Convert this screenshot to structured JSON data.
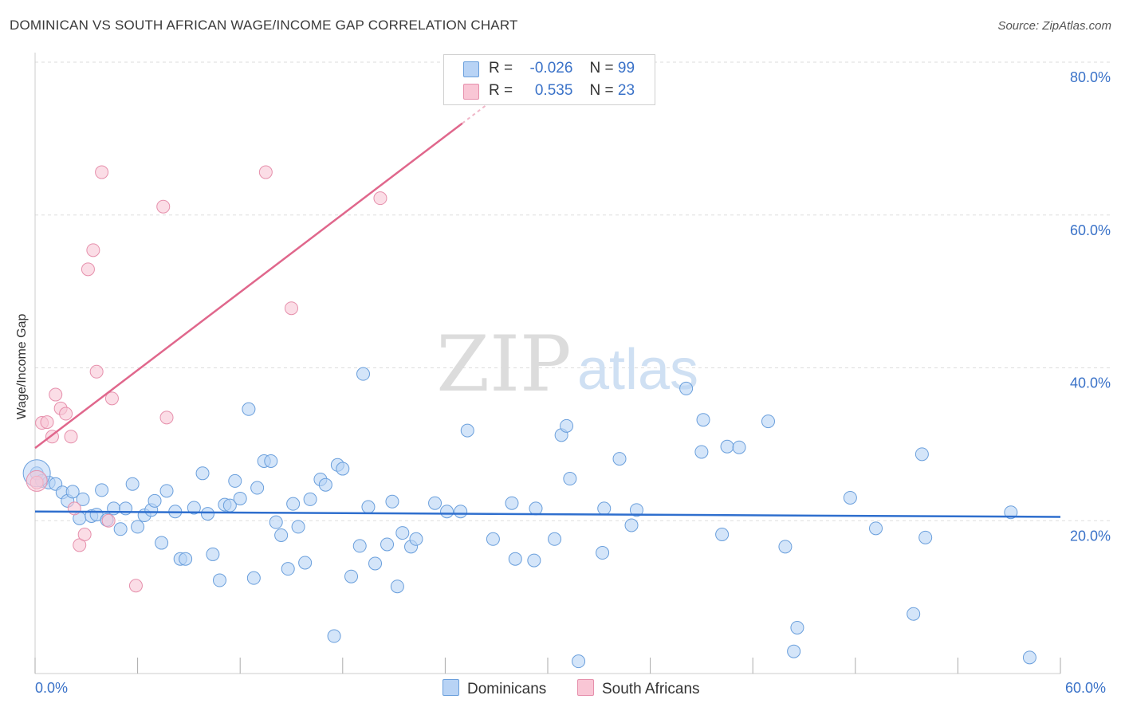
{
  "title": "DOMINICAN VS SOUTH AFRICAN WAGE/INCOME GAP CORRELATION CHART",
  "source": "Source: ZipAtlas.com",
  "watermark": {
    "zip": "ZIP",
    "atlas": "atlas"
  },
  "legend": {
    "rows": [
      {
        "r_label": "R =",
        "r_value": "-0.026",
        "n_label": "N =",
        "n_value": "99"
      },
      {
        "r_label": "R =",
        "r_value": "0.535",
        "n_label": "N =",
        "n_value": "23"
      }
    ]
  },
  "colors": {
    "dominicans_fill": "#b8d3f5",
    "dominicans_stroke": "#6a9fdc",
    "dominicans_line": "#2f6fce",
    "south_africans_fill": "#f9c6d5",
    "south_africans_stroke": "#e690ac",
    "south_africans_line": "#e0678c",
    "axis_text": "#3a72c8",
    "grid": "#dddddd"
  },
  "chart_data": {
    "type": "scatter",
    "title": "DOMINICAN VS SOUTH AFRICAN WAGE/INCOME GAP CORRELATION CHART",
    "xlabel": "",
    "ylabel": "Wage/Income Gap",
    "xlim": [
      0,
      60
    ],
    "ylim": [
      0,
      80
    ],
    "x_tick_labels": [
      "0.0%",
      "60.0%"
    ],
    "y_tick_labels": [
      "20.0%",
      "40.0%",
      "60.0%",
      "80.0%"
    ],
    "y_ticks": [
      20,
      40,
      60,
      80
    ],
    "grid": true,
    "legend_position": "bottom-center",
    "series": [
      {
        "name": "Dominicans",
        "r": -0.026,
        "n": 99,
        "trend": {
          "x": [
            0,
            60
          ],
          "y": [
            21.2,
            20.5
          ]
        },
        "points": [
          [
            0.1,
            26.2
          ],
          [
            0.4,
            25.2
          ],
          [
            0.8,
            25.0
          ],
          [
            1.2,
            24.8
          ],
          [
            1.6,
            23.7
          ],
          [
            1.9,
            22.6
          ],
          [
            2.2,
            23.8
          ],
          [
            2.6,
            20.3
          ],
          [
            2.8,
            22.8
          ],
          [
            3.3,
            20.6
          ],
          [
            3.6,
            20.8
          ],
          [
            3.9,
            24.0
          ],
          [
            4.2,
            20.1
          ],
          [
            4.6,
            21.6
          ],
          [
            5.0,
            18.9
          ],
          [
            5.3,
            21.6
          ],
          [
            5.7,
            24.8
          ],
          [
            6.0,
            19.2
          ],
          [
            6.4,
            20.7
          ],
          [
            6.8,
            21.4
          ],
          [
            7.0,
            22.6
          ],
          [
            7.4,
            17.1
          ],
          [
            7.7,
            23.9
          ],
          [
            8.2,
            21.2
          ],
          [
            8.5,
            15.0
          ],
          [
            8.8,
            15.0
          ],
          [
            9.3,
            21.7
          ],
          [
            9.8,
            26.2
          ],
          [
            10.1,
            20.9
          ],
          [
            10.4,
            15.6
          ],
          [
            10.8,
            12.2
          ],
          [
            11.1,
            22.1
          ],
          [
            11.4,
            22.0
          ],
          [
            11.7,
            25.2
          ],
          [
            12.0,
            22.9
          ],
          [
            12.5,
            34.6
          ],
          [
            12.8,
            12.5
          ],
          [
            13.0,
            24.3
          ],
          [
            13.4,
            27.8
          ],
          [
            13.8,
            27.8
          ],
          [
            14.1,
            19.8
          ],
          [
            14.4,
            18.1
          ],
          [
            14.8,
            13.7
          ],
          [
            15.1,
            22.2
          ],
          [
            15.4,
            19.2
          ],
          [
            15.8,
            14.5
          ],
          [
            16.1,
            22.8
          ],
          [
            16.7,
            25.4
          ],
          [
            17.0,
            24.7
          ],
          [
            17.5,
            4.9
          ],
          [
            17.7,
            27.3
          ],
          [
            18.0,
            26.8
          ],
          [
            18.5,
            12.7
          ],
          [
            19.0,
            16.7
          ],
          [
            19.2,
            39.2
          ],
          [
            19.5,
            21.8
          ],
          [
            19.9,
            14.4
          ],
          [
            20.6,
            16.9
          ],
          [
            20.9,
            22.5
          ],
          [
            21.2,
            11.4
          ],
          [
            21.5,
            18.4
          ],
          [
            22.0,
            16.6
          ],
          [
            22.3,
            17.6
          ],
          [
            23.4,
            22.3
          ],
          [
            24.1,
            21.2
          ],
          [
            24.9,
            21.2
          ],
          [
            25.3,
            31.8
          ],
          [
            26.8,
            17.6
          ],
          [
            27.9,
            22.3
          ],
          [
            28.1,
            15.0
          ],
          [
            29.2,
            14.8
          ],
          [
            29.3,
            21.6
          ],
          [
            30.4,
            17.6
          ],
          [
            30.8,
            31.2
          ],
          [
            31.1,
            32.4
          ],
          [
            31.3,
            25.5
          ],
          [
            31.8,
            1.6
          ],
          [
            33.2,
            15.8
          ],
          [
            33.3,
            21.6
          ],
          [
            34.2,
            28.1
          ],
          [
            34.9,
            19.4
          ],
          [
            35.2,
            21.4
          ],
          [
            38.1,
            37.3
          ],
          [
            39.0,
            29.0
          ],
          [
            39.1,
            33.2
          ],
          [
            40.2,
            18.2
          ],
          [
            40.5,
            29.7
          ],
          [
            41.2,
            29.6
          ],
          [
            42.9,
            33.0
          ],
          [
            43.9,
            16.6
          ],
          [
            44.6,
            6.0
          ],
          [
            44.4,
            2.9
          ],
          [
            47.7,
            23.0
          ],
          [
            49.2,
            19.0
          ],
          [
            51.4,
            7.8
          ],
          [
            51.9,
            28.7
          ],
          [
            52.1,
            17.8
          ],
          [
            57.1,
            21.1
          ],
          [
            58.2,
            2.1
          ]
        ]
      },
      {
        "name": "South Africans",
        "r": 0.535,
        "n": 23,
        "trend": {
          "x": [
            0,
            25.0
          ],
          "y": [
            29.5,
            72.0
          ]
        },
        "trend_dashed": {
          "x": [
            25.0,
            28.0
          ],
          "y": [
            72.0,
            77.1
          ]
        },
        "points": [
          [
            0.1,
            25.0
          ],
          [
            0.4,
            32.8
          ],
          [
            0.7,
            32.9
          ],
          [
            1.0,
            31.0
          ],
          [
            1.2,
            36.5
          ],
          [
            1.5,
            34.7
          ],
          [
            1.8,
            34.0
          ],
          [
            2.1,
            31.0
          ],
          [
            2.3,
            21.6
          ],
          [
            2.6,
            16.8
          ],
          [
            2.9,
            18.2
          ],
          [
            3.1,
            52.9
          ],
          [
            3.4,
            55.4
          ],
          [
            3.6,
            39.5
          ],
          [
            3.9,
            65.6
          ],
          [
            4.3,
            20.0
          ],
          [
            4.5,
            36.0
          ],
          [
            5.9,
            11.5
          ],
          [
            7.5,
            61.1
          ],
          [
            7.7,
            33.5
          ],
          [
            13.5,
            65.6
          ],
          [
            15.0,
            47.8
          ],
          [
            20.2,
            62.2
          ]
        ]
      }
    ]
  },
  "bottom_legend": [
    {
      "label": "Dominicans"
    },
    {
      "label": "South Africans"
    }
  ]
}
